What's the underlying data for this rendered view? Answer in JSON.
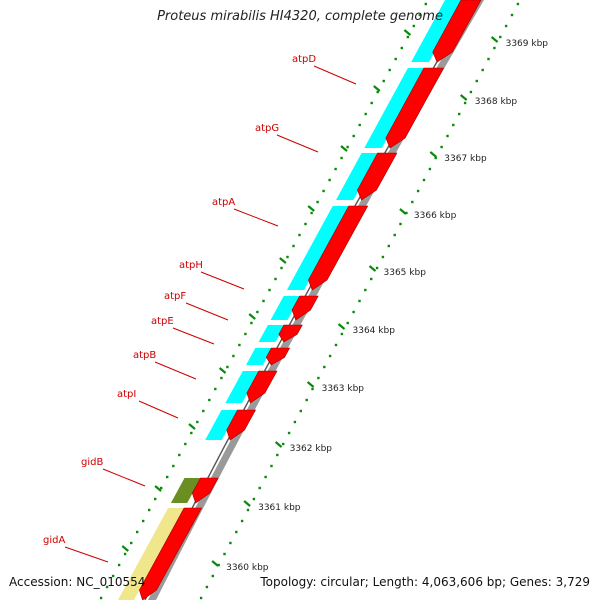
{
  "map": {
    "title": "Proteus mirabilis HI4320, complete genome",
    "accession_text": "Accession: NC_010554",
    "summary_text": "Topology: circular; Length: 4,063,606 bp; Genes: 3,729",
    "kbp_ticks": [
      {
        "kbp": 3369,
        "label": "3369 kbp"
      },
      {
        "kbp": 3368,
        "label": "3368 kbp"
      },
      {
        "kbp": 3367,
        "label": "3367 kbp"
      },
      {
        "kbp": 3366,
        "label": "3366 kbp"
      },
      {
        "kbp": 3365,
        "label": "3365 kbp"
      },
      {
        "kbp": 3364,
        "label": "3364 kbp"
      },
      {
        "kbp": 3363,
        "label": "3363 kbp"
      },
      {
        "kbp": 3362,
        "label": "3362 kbp"
      },
      {
        "kbp": 3361,
        "label": "3361 kbp"
      },
      {
        "kbp": 3360,
        "label": "3360 kbp"
      }
    ],
    "genes": [
      {
        "name": "atpD"
      },
      {
        "name": "atpG"
      },
      {
        "name": "atpA"
      },
      {
        "name": "atpH"
      },
      {
        "name": "atpF"
      },
      {
        "name": "atpE"
      },
      {
        "name": "atpB"
      },
      {
        "name": "atpI"
      },
      {
        "name": "gidB"
      },
      {
        "name": "gidA"
      }
    ],
    "colors": {
      "cds": "#ff0000",
      "category_cyan": "#00ffff",
      "category_olive": "#6b8e23",
      "category_pale": "#f0e68c",
      "backbone": "#9a9a9a",
      "tick": "#0a8a0a",
      "gene_label": "#cc0000"
    }
  }
}
